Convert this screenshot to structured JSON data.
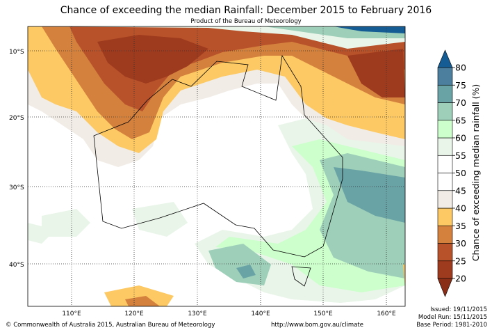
{
  "header": {
    "title": "Chance of exceeding the median Rainfall: December 2015 to February 2016",
    "subtitle": "Product of the Bureau of Meteorology"
  },
  "map": {
    "lat_labels": [
      "10°S",
      "20°S",
      "30°S",
      "40°S"
    ],
    "lon_labels": [
      "110°E",
      "120°E",
      "130°E",
      "140°E",
      "150°E",
      "160°E"
    ]
  },
  "colorbar": {
    "label": "Chance of exceeding median rainfall (%)",
    "ticks": [
      20,
      25,
      30,
      35,
      40,
      45,
      50,
      55,
      60,
      65,
      70,
      75,
      80
    ],
    "colors": [
      "#9e3a1e",
      "#b8522a",
      "#d4813e",
      "#fdc964",
      "#f1ece6",
      "#ffffff",
      "#ffffff",
      "#e9f5e9",
      "#ccffcc",
      "#9ecfb9",
      "#6aa3a6",
      "#4b7f9d"
    ],
    "under_color": "#8a2e17",
    "over_color": "#145c93"
  },
  "footer": {
    "copyright": "© Commonwealth of Australia 2015, Australian Bureau of Meteorology",
    "url": "http://www.bom.gov.au/climate",
    "issued": "Issued: 19/11/2015",
    "model_run": "Model Run: 15/11/2015",
    "base_period": "Base Period: 1981-2010"
  }
}
